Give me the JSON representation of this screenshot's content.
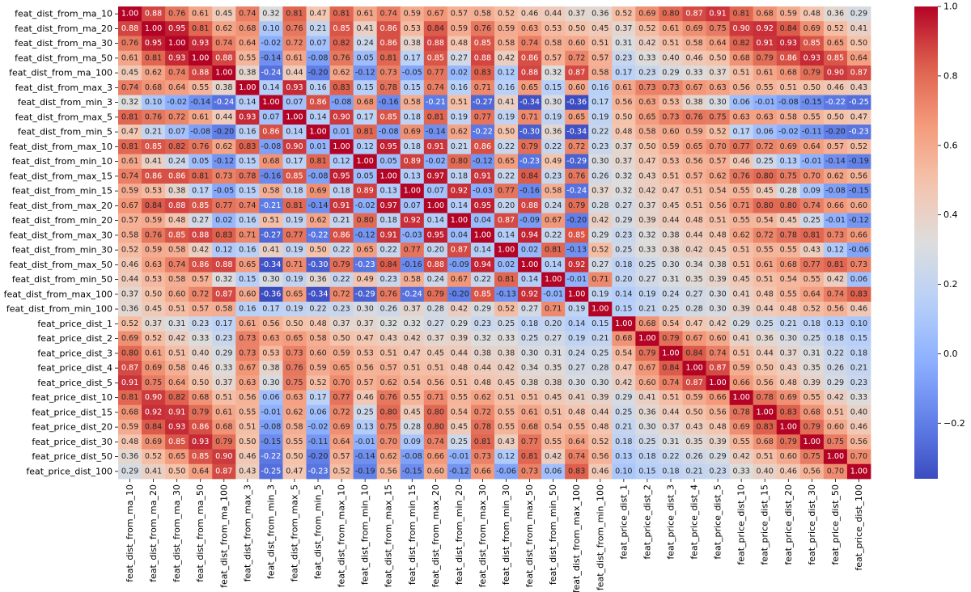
{
  "chart_data": {
    "type": "heatmap",
    "title": "",
    "xlabel": "",
    "ylabel": "",
    "value_format": "2 decimals",
    "colormap": "coolwarm",
    "vmin": -0.36,
    "vmax": 1.0,
    "colorbar_ticks": [
      "1.0",
      "0.8",
      "0.6",
      "0.4",
      "0.2",
      "0.0",
      "−0.2"
    ],
    "colorbar_tick_values": [
      1.0,
      0.8,
      0.6,
      0.4,
      0.2,
      0.0,
      -0.2
    ],
    "labels": [
      "feat_dist_from_ma_10",
      "feat_dist_from_ma_20",
      "feat_dist_from_ma_30",
      "feat_dist_from_ma_50",
      "feat_dist_from_ma_100",
      "feat_dist_from_max_3",
      "feat_dist_from_min_3",
      "feat_dist_from_max_5",
      "feat_dist_from_min_5",
      "feat_dist_from_max_10",
      "feat_dist_from_min_10",
      "feat_dist_from_max_15",
      "feat_dist_from_min_15",
      "feat_dist_from_max_20",
      "feat_dist_from_min_20",
      "feat_dist_from_max_30",
      "feat_dist_from_min_30",
      "feat_dist_from_max_50",
      "feat_dist_from_min_50",
      "feat_dist_from_max_100",
      "feat_dist_from_min_100",
      "feat_price_dist_1",
      "feat_price_dist_2",
      "feat_price_dist_3",
      "feat_price_dist_4",
      "feat_price_dist_5",
      "feat_price_dist_10",
      "feat_price_dist_15",
      "feat_price_dist_20",
      "feat_price_dist_30",
      "feat_price_dist_50",
      "feat_price_dist_100"
    ],
    "matrix": [
      [
        1.0,
        0.88,
        0.76,
        0.61,
        0.45,
        0.74,
        0.32,
        0.81,
        0.47,
        0.81,
        0.61,
        0.74,
        0.59,
        0.67,
        0.57,
        0.58,
        0.52,
        0.46,
        0.44,
        0.37,
        0.36,
        0.52,
        0.69,
        0.8,
        0.87,
        0.91,
        0.81,
        0.68,
        0.59,
        0.48,
        0.36,
        0.29
      ],
      [
        0.88,
        1.0,
        0.95,
        0.81,
        0.62,
        0.68,
        0.1,
        0.76,
        0.21,
        0.85,
        0.41,
        0.86,
        0.53,
        0.84,
        0.59,
        0.76,
        0.59,
        0.63,
        0.53,
        0.5,
        0.45,
        0.37,
        0.52,
        0.61,
        0.69,
        0.75,
        0.9,
        0.92,
        0.84,
        0.69,
        0.52,
        0.41
      ],
      [
        0.76,
        0.95,
        1.0,
        0.93,
        0.74,
        0.64,
        -0.02,
        0.72,
        0.07,
        0.82,
        0.24,
        0.86,
        0.38,
        0.88,
        0.48,
        0.85,
        0.58,
        0.74,
        0.58,
        0.6,
        0.51,
        0.31,
        0.42,
        0.51,
        0.58,
        0.64,
        0.82,
        0.91,
        0.93,
        0.85,
        0.65,
        0.5
      ],
      [
        0.61,
        0.81,
        0.93,
        1.0,
        0.88,
        0.55,
        -0.14,
        0.61,
        -0.08,
        0.76,
        0.05,
        0.81,
        0.17,
        0.85,
        0.27,
        0.88,
        0.42,
        0.86,
        0.57,
        0.72,
        0.57,
        0.23,
        0.33,
        0.4,
        0.46,
        0.5,
        0.68,
        0.79,
        0.86,
        0.93,
        0.85,
        0.64
      ],
      [
        0.45,
        0.62,
        0.74,
        0.88,
        1.0,
        0.38,
        -0.24,
        0.44,
        -0.2,
        0.62,
        -0.12,
        0.73,
        -0.05,
        0.77,
        0.02,
        0.83,
        0.12,
        0.88,
        0.32,
        0.87,
        0.58,
        0.17,
        0.23,
        0.29,
        0.33,
        0.37,
        0.51,
        0.61,
        0.68,
        0.79,
        0.9,
        0.87
      ],
      [
        0.74,
        0.68,
        0.64,
        0.55,
        0.38,
        1.0,
        0.14,
        0.93,
        0.16,
        0.83,
        0.15,
        0.78,
        0.15,
        0.74,
        0.16,
        0.71,
        0.16,
        0.65,
        0.15,
        0.6,
        0.16,
        0.61,
        0.73,
        0.73,
        0.67,
        0.63,
        0.56,
        0.55,
        0.51,
        0.5,
        0.46,
        0.43
      ],
      [
        0.32,
        0.1,
        -0.02,
        -0.14,
        -0.24,
        0.14,
        1.0,
        0.07,
        0.86,
        -0.08,
        0.68,
        -0.16,
        0.58,
        -0.21,
        0.51,
        -0.27,
        0.41,
        -0.34,
        0.3,
        -0.36,
        0.17,
        0.56,
        0.63,
        0.53,
        0.38,
        0.3,
        0.06,
        -0.01,
        -0.08,
        -0.15,
        -0.22,
        -0.25
      ],
      [
        0.81,
        0.76,
        0.72,
        0.61,
        0.44,
        0.93,
        0.07,
        1.0,
        0.14,
        0.9,
        0.17,
        0.85,
        0.18,
        0.81,
        0.19,
        0.77,
        0.19,
        0.71,
        0.19,
        0.65,
        0.19,
        0.5,
        0.65,
        0.73,
        0.76,
        0.75,
        0.63,
        0.63,
        0.58,
        0.55,
        0.5,
        0.47
      ],
      [
        0.47,
        0.21,
        0.07,
        -0.08,
        -0.2,
        0.16,
        0.86,
        0.14,
        1.0,
        0.01,
        0.81,
        -0.08,
        0.69,
        -0.14,
        0.62,
        -0.22,
        0.5,
        -0.3,
        0.36,
        -0.34,
        0.22,
        0.48,
        0.58,
        0.6,
        0.59,
        0.52,
        0.17,
        0.06,
        -0.02,
        -0.11,
        -0.2,
        -0.23
      ],
      [
        0.81,
        0.85,
        0.82,
        0.76,
        0.62,
        0.83,
        -0.08,
        0.9,
        0.01,
        1.0,
        0.12,
        0.95,
        0.18,
        0.91,
        0.21,
        0.86,
        0.22,
        0.79,
        0.22,
        0.72,
        0.23,
        0.37,
        0.5,
        0.59,
        0.65,
        0.7,
        0.77,
        0.72,
        0.69,
        0.64,
        0.57,
        0.52
      ],
      [
        0.61,
        0.41,
        0.24,
        0.05,
        -0.12,
        0.15,
        0.68,
        0.17,
        0.81,
        0.12,
        1.0,
        0.05,
        0.89,
        -0.02,
        0.8,
        -0.12,
        0.65,
        -0.23,
        0.49,
        -0.29,
        0.3,
        0.37,
        0.47,
        0.53,
        0.56,
        0.57,
        0.46,
        0.25,
        0.13,
        -0.01,
        -0.14,
        -0.19
      ],
      [
        0.74,
        0.86,
        0.86,
        0.81,
        0.73,
        0.78,
        -0.16,
        0.85,
        -0.08,
        0.95,
        0.05,
        1.0,
        0.13,
        0.97,
        0.18,
        0.91,
        0.22,
        0.84,
        0.23,
        0.76,
        0.26,
        0.32,
        0.43,
        0.51,
        0.57,
        0.62,
        0.76,
        0.8,
        0.75,
        0.7,
        0.62,
        0.56
      ],
      [
        0.59,
        0.53,
        0.38,
        0.17,
        -0.05,
        0.15,
        0.58,
        0.18,
        0.69,
        0.18,
        0.89,
        0.13,
        1.0,
        0.07,
        0.92,
        -0.03,
        0.77,
        -0.16,
        0.58,
        -0.24,
        0.37,
        0.32,
        0.42,
        0.47,
        0.51,
        0.54,
        0.55,
        0.45,
        0.28,
        0.09,
        -0.08,
        -0.15
      ],
      [
        0.67,
        0.84,
        0.88,
        0.85,
        0.77,
        0.74,
        -0.21,
        0.81,
        -0.14,
        0.91,
        -0.02,
        0.97,
        0.07,
        1.0,
        0.14,
        0.95,
        0.2,
        0.88,
        0.24,
        0.79,
        0.28,
        0.27,
        0.37,
        0.45,
        0.51,
        0.56,
        0.71,
        0.8,
        0.8,
        0.74,
        0.66,
        0.6
      ],
      [
        0.57,
        0.59,
        0.48,
        0.27,
        0.02,
        0.16,
        0.51,
        0.19,
        0.62,
        0.21,
        0.8,
        0.18,
        0.92,
        0.14,
        1.0,
        0.04,
        0.87,
        -0.09,
        0.67,
        -0.2,
        0.42,
        0.29,
        0.39,
        0.44,
        0.48,
        0.51,
        0.55,
        0.54,
        0.45,
        0.25,
        -0.01,
        -0.12
      ],
      [
        0.58,
        0.76,
        0.85,
        0.88,
        0.83,
        0.71,
        -0.27,
        0.77,
        -0.22,
        0.86,
        -0.12,
        0.91,
        -0.03,
        0.95,
        0.04,
        1.0,
        0.14,
        0.94,
        0.22,
        0.85,
        0.29,
        0.23,
        0.32,
        0.38,
        0.44,
        0.48,
        0.62,
        0.72,
        0.78,
        0.81,
        0.73,
        0.66
      ],
      [
        0.52,
        0.59,
        0.58,
        0.42,
        0.12,
        0.16,
        0.41,
        0.19,
        0.5,
        0.22,
        0.65,
        0.22,
        0.77,
        0.2,
        0.87,
        0.14,
        1.0,
        0.02,
        0.81,
        -0.13,
        0.52,
        0.25,
        0.33,
        0.38,
        0.42,
        0.45,
        0.51,
        0.55,
        0.55,
        0.43,
        0.12,
        -0.06
      ],
      [
        0.46,
        0.63,
        0.74,
        0.86,
        0.88,
        0.65,
        -0.34,
        0.71,
        -0.3,
        0.79,
        -0.23,
        0.84,
        -0.16,
        0.88,
        -0.09,
        0.94,
        0.02,
        1.0,
        0.14,
        0.92,
        0.27,
        0.18,
        0.25,
        0.3,
        0.34,
        0.38,
        0.51,
        0.61,
        0.68,
        0.77,
        0.81,
        0.73
      ],
      [
        0.44,
        0.53,
        0.58,
        0.57,
        0.32,
        0.15,
        0.3,
        0.19,
        0.36,
        0.22,
        0.49,
        0.23,
        0.58,
        0.24,
        0.67,
        0.22,
        0.81,
        0.14,
        1.0,
        -0.01,
        0.71,
        0.2,
        0.27,
        0.31,
        0.35,
        0.39,
        0.45,
        0.51,
        0.54,
        0.55,
        0.42,
        0.06
      ],
      [
        0.37,
        0.5,
        0.6,
        0.72,
        0.87,
        0.6,
        -0.36,
        0.65,
        -0.34,
        0.72,
        -0.29,
        0.76,
        -0.24,
        0.79,
        -0.2,
        0.85,
        -0.13,
        0.92,
        -0.01,
        1.0,
        0.19,
        0.14,
        0.19,
        0.24,
        0.27,
        0.3,
        0.41,
        0.48,
        0.55,
        0.64,
        0.74,
        0.83
      ],
      [
        0.36,
        0.45,
        0.51,
        0.57,
        0.58,
        0.16,
        0.17,
        0.19,
        0.22,
        0.23,
        0.3,
        0.26,
        0.37,
        0.28,
        0.42,
        0.29,
        0.52,
        0.27,
        0.71,
        0.19,
        1.0,
        0.15,
        0.21,
        0.25,
        0.28,
        0.3,
        0.39,
        0.44,
        0.48,
        0.52,
        0.56,
        0.46
      ],
      [
        0.52,
        0.37,
        0.31,
        0.23,
        0.17,
        0.61,
        0.56,
        0.5,
        0.48,
        0.37,
        0.37,
        0.32,
        0.32,
        0.27,
        0.29,
        0.23,
        0.25,
        0.18,
        0.2,
        0.14,
        0.15,
        1.0,
        0.68,
        0.54,
        0.47,
        0.42,
        0.29,
        0.25,
        0.21,
        0.18,
        0.13,
        0.1
      ],
      [
        0.69,
        0.52,
        0.42,
        0.33,
        0.23,
        0.73,
        0.63,
        0.65,
        0.58,
        0.5,
        0.47,
        0.43,
        0.42,
        0.37,
        0.39,
        0.32,
        0.33,
        0.25,
        0.27,
        0.19,
        0.21,
        0.68,
        1.0,
        0.79,
        0.67,
        0.6,
        0.41,
        0.36,
        0.3,
        0.25,
        0.18,
        0.15
      ],
      [
        0.8,
        0.61,
        0.51,
        0.4,
        0.29,
        0.73,
        0.53,
        0.73,
        0.6,
        0.59,
        0.53,
        0.51,
        0.47,
        0.45,
        0.44,
        0.38,
        0.38,
        0.3,
        0.31,
        0.24,
        0.25,
        0.54,
        0.79,
        1.0,
        0.84,
        0.74,
        0.51,
        0.44,
        0.37,
        0.31,
        0.22,
        0.18
      ],
      [
        0.87,
        0.69,
        0.58,
        0.46,
        0.33,
        0.67,
        0.38,
        0.76,
        0.59,
        0.65,
        0.56,
        0.57,
        0.51,
        0.51,
        0.48,
        0.44,
        0.42,
        0.34,
        0.35,
        0.27,
        0.28,
        0.47,
        0.67,
        0.84,
        1.0,
        0.87,
        0.59,
        0.5,
        0.43,
        0.35,
        0.26,
        0.21
      ],
      [
        0.91,
        0.75,
        0.64,
        0.5,
        0.37,
        0.63,
        0.3,
        0.75,
        0.52,
        0.7,
        0.57,
        0.62,
        0.54,
        0.56,
        0.51,
        0.48,
        0.45,
        0.38,
        0.38,
        0.3,
        0.3,
        0.42,
        0.6,
        0.74,
        0.87,
        1.0,
        0.66,
        0.56,
        0.48,
        0.39,
        0.29,
        0.23
      ],
      [
        0.81,
        0.9,
        0.82,
        0.68,
        0.51,
        0.56,
        0.06,
        0.63,
        0.17,
        0.77,
        0.46,
        0.76,
        0.55,
        0.71,
        0.55,
        0.62,
        0.51,
        0.51,
        0.45,
        0.41,
        0.39,
        0.29,
        0.41,
        0.51,
        0.59,
        0.66,
        1.0,
        0.78,
        0.69,
        0.55,
        0.42,
        0.33
      ],
      [
        0.68,
        0.92,
        0.91,
        0.79,
        0.61,
        0.55,
        -0.01,
        0.62,
        0.06,
        0.72,
        0.25,
        0.8,
        0.45,
        0.8,
        0.54,
        0.72,
        0.55,
        0.61,
        0.51,
        0.48,
        0.44,
        0.25,
        0.36,
        0.44,
        0.5,
        0.56,
        0.78,
        1.0,
        0.83,
        0.68,
        0.51,
        0.4
      ],
      [
        0.59,
        0.84,
        0.93,
        0.86,
        0.68,
        0.51,
        -0.08,
        0.58,
        -0.02,
        0.69,
        0.13,
        0.75,
        0.28,
        0.8,
        0.45,
        0.78,
        0.55,
        0.68,
        0.54,
        0.55,
        0.48,
        0.21,
        0.3,
        0.37,
        0.43,
        0.48,
        0.69,
        0.83,
        1.0,
        0.79,
        0.6,
        0.46
      ],
      [
        0.48,
        0.69,
        0.85,
        0.93,
        0.79,
        0.5,
        -0.15,
        0.55,
        -0.11,
        0.64,
        -0.01,
        0.7,
        0.09,
        0.74,
        0.25,
        0.81,
        0.43,
        0.77,
        0.55,
        0.64,
        0.52,
        0.18,
        0.25,
        0.31,
        0.35,
        0.39,
        0.55,
        0.68,
        0.79,
        1.0,
        0.75,
        0.56
      ],
      [
        0.36,
        0.52,
        0.65,
        0.85,
        0.9,
        0.46,
        -0.22,
        0.5,
        -0.2,
        0.57,
        -0.14,
        0.62,
        -0.08,
        0.66,
        -0.01,
        0.73,
        0.12,
        0.81,
        0.42,
        0.74,
        0.56,
        0.13,
        0.18,
        0.22,
        0.26,
        0.29,
        0.42,
        0.51,
        0.6,
        0.75,
        1.0,
        0.7
      ],
      [
        0.29,
        0.41,
        0.5,
        0.64,
        0.87,
        0.43,
        -0.25,
        0.47,
        -0.23,
        0.52,
        -0.19,
        0.56,
        -0.15,
        0.6,
        -0.12,
        0.66,
        -0.06,
        0.73,
        0.06,
        0.83,
        0.46,
        0.1,
        0.15,
        0.18,
        0.21,
        0.23,
        0.33,
        0.4,
        0.46,
        0.56,
        0.7,
        1.0
      ]
    ]
  }
}
